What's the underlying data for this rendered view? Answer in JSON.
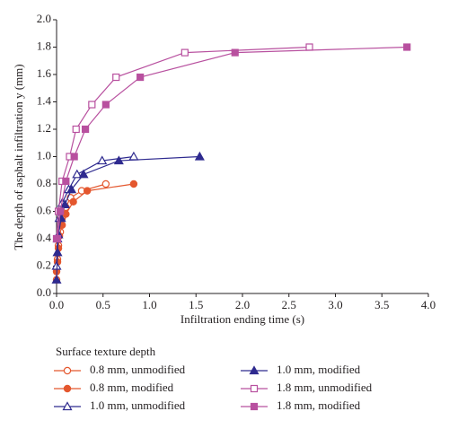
{
  "chart_data": {
    "type": "line",
    "xlabel": "Infiltration ending time (s)",
    "ylabel": "The depth of asphalt infiltration y (mm)",
    "legend_title": "Surface texture depth",
    "xlim": [
      0,
      4.0
    ],
    "ylim": [
      0,
      2.0
    ],
    "xticks": [
      {
        "value": 0,
        "label": "0.0"
      },
      0.5,
      {
        "value": 1,
        "label": "1.0"
      },
      1.5,
      {
        "value": 2,
        "label": "2.0"
      },
      2.5,
      {
        "value": 3,
        "label": "3.0"
      },
      3.5,
      {
        "value": 4,
        "label": "4.0"
      }
    ],
    "yticks": [
      {
        "value": 0,
        "label": "0.0"
      },
      0.2,
      0.4,
      0.6,
      0.8,
      {
        "value": 1,
        "label": "1.0"
      },
      1.2,
      1.4,
      1.6,
      1.8,
      {
        "value": 2,
        "label": "2.0"
      }
    ],
    "series": [
      {
        "name": "0.8 mm, unmodified",
        "color": "#e4572e",
        "marker": "circle",
        "filled": false,
        "x": [
          0,
          0.01,
          0.02,
          0.04,
          0.06,
          0.1,
          0.15,
          0.27,
          0.53
        ],
        "values": [
          0.1,
          0.25,
          0.35,
          0.45,
          0.55,
          0.63,
          0.7,
          0.75,
          0.8
        ]
      },
      {
        "name": "0.8 mm, modified",
        "color": "#e4572e",
        "marker": "circle",
        "filled": true,
        "x": [
          0,
          0.01,
          0.02,
          0.03,
          0.06,
          0.1,
          0.18,
          0.33,
          0.83
        ],
        "values": [
          0.16,
          0.23,
          0.33,
          0.42,
          0.5,
          0.58,
          0.67,
          0.75,
          0.8
        ]
      },
      {
        "name": "1.0 mm, unmodified",
        "color": "#2e2a8f",
        "marker": "triangle",
        "filled": false,
        "x": [
          0,
          0.01,
          0.03,
          0.06,
          0.13,
          0.22,
          0.49,
          0.83
        ],
        "values": [
          0.2,
          0.4,
          0.55,
          0.66,
          0.76,
          0.87,
          0.97,
          1.0
        ]
      },
      {
        "name": "1.0 mm, modified",
        "color": "#2e2a8f",
        "marker": "triangle",
        "filled": true,
        "x": [
          0,
          0.01,
          0.02,
          0.05,
          0.09,
          0.16,
          0.29,
          0.67,
          1.54
        ],
        "values": [
          0.1,
          0.3,
          0.43,
          0.55,
          0.65,
          0.76,
          0.87,
          0.97,
          1.0
        ]
      },
      {
        "name": "1.8 mm, unmodified",
        "color": "#b8509f",
        "marker": "square",
        "filled": false,
        "x": [
          0,
          0.02,
          0.06,
          0.14,
          0.21,
          0.38,
          0.64,
          1.38,
          2.72
        ],
        "values": [
          0.4,
          0.6,
          0.82,
          1.0,
          1.2,
          1.38,
          1.58,
          1.76,
          1.8
        ]
      },
      {
        "name": "1.8 mm, modified",
        "color": "#b8509f",
        "marker": "square",
        "filled": true,
        "x": [
          0.01,
          0.04,
          0.1,
          0.19,
          0.31,
          0.53,
          0.9,
          1.92,
          3.77
        ],
        "values": [
          0.4,
          0.6,
          0.82,
          1.0,
          1.2,
          1.38,
          1.58,
          1.76,
          1.8
        ]
      }
    ]
  }
}
